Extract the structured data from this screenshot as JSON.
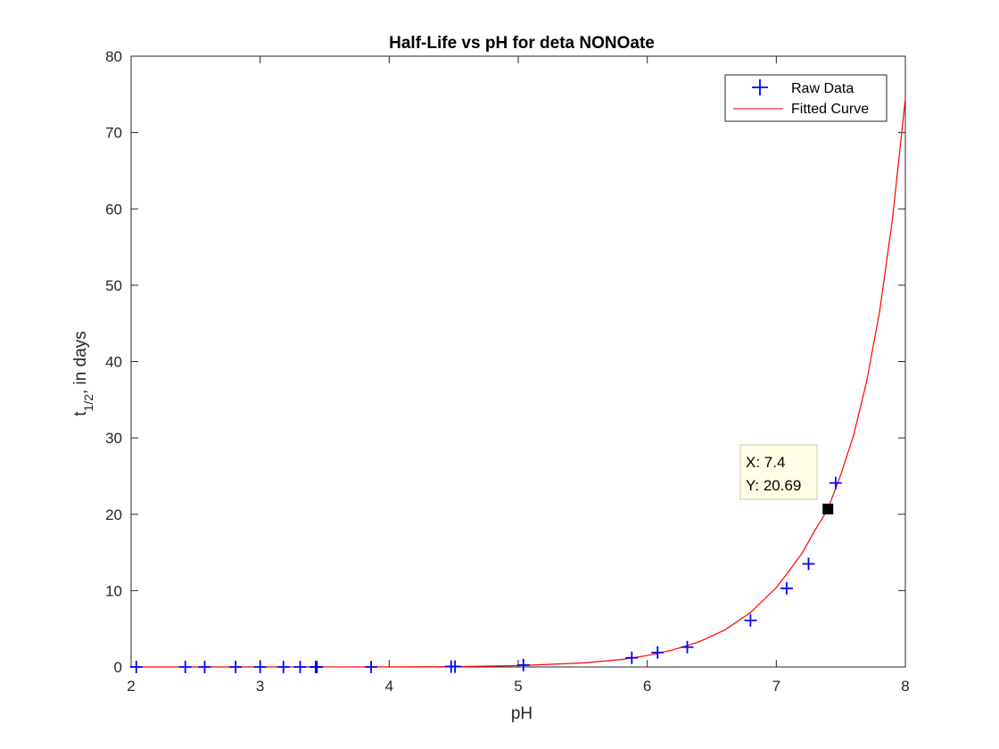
{
  "chart_data": {
    "type": "scatter",
    "title": "Half-Life vs pH for deta NONOate",
    "xlabel": "pH",
    "ylabel": {
      "base": "t",
      "subscript": "1/2",
      "suffix": ", in days"
    },
    "xlim": [
      2,
      8
    ],
    "ylim": [
      0,
      80
    ],
    "xticks": [
      2,
      3,
      4,
      5,
      6,
      7,
      8
    ],
    "yticks": [
      0,
      10,
      20,
      30,
      40,
      50,
      60,
      70,
      80
    ],
    "grid": false,
    "legend_position": "top-right",
    "series": [
      {
        "name": "Raw Data",
        "style": "marker-plus",
        "color": "#0000ff",
        "x": [
          2.04,
          2.42,
          2.57,
          2.81,
          3.0,
          3.18,
          3.31,
          3.43,
          3.44,
          3.86,
          4.48,
          4.51,
          5.04,
          5.88,
          6.08,
          6.31,
          6.8,
          7.08,
          7.25,
          7.46
        ],
        "y": [
          0.0,
          0.0,
          0.0,
          0.0,
          0.0,
          0.0,
          0.0,
          0.0,
          0.0,
          0.0,
          0.05,
          0.05,
          0.25,
          1.2,
          1.9,
          2.6,
          6.1,
          10.3,
          13.5,
          24.1
        ]
      },
      {
        "name": "Fitted Curve",
        "style": "line",
        "color": "#ff0000",
        "x": [
          2.0,
          3.0,
          4.0,
          4.5,
          5.0,
          5.5,
          5.8,
          6.0,
          6.2,
          6.4,
          6.6,
          6.8,
          7.0,
          7.1,
          7.2,
          7.3,
          7.4,
          7.5,
          7.6,
          7.7,
          7.8,
          7.9,
          8.0
        ],
        "y": [
          0.0,
          0.0,
          0.01,
          0.04,
          0.17,
          0.52,
          0.98,
          1.5,
          2.23,
          3.28,
          4.84,
          7.13,
          10.4,
          12.6,
          14.9,
          17.9,
          20.69,
          25.2,
          30.4,
          37.4,
          46.5,
          58.6,
          74.4
        ]
      }
    ],
    "datatip": {
      "x": 7.4,
      "y": 20.69,
      "x_text": "X: 7.4",
      "y_text": "Y: 20.69"
    }
  }
}
